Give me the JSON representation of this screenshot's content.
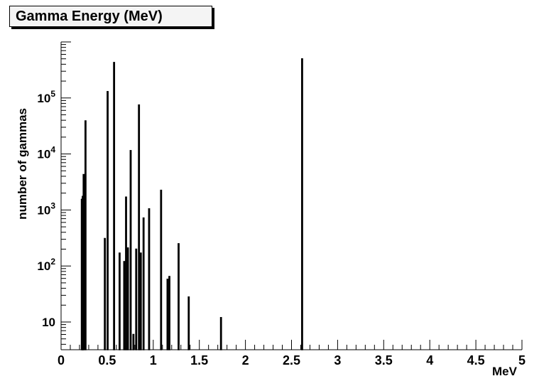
{
  "title": "Gamma Energy (MeV)",
  "colors": {
    "background": "#ffffff",
    "frame_background": "#f4f4f4",
    "bar": "#000000",
    "axis": "#000000"
  },
  "chart_data": {
    "type": "bar",
    "title": "Gamma Energy (MeV)",
    "xlabel": "MeV",
    "ylabel": "number of gammas",
    "xlim": [
      0,
      5
    ],
    "ylim": [
      3.2,
      1000000
    ],
    "yscale": "log",
    "grid": false,
    "legend": "none",
    "x_ticks": [
      "0",
      "0.5",
      "1",
      "1.5",
      "2",
      "2.5",
      "3",
      "3.5",
      "4",
      "4.5",
      "5"
    ],
    "y_ticks": [
      {
        "value": 10,
        "base": "10",
        "exp": ""
      },
      {
        "value": 100,
        "base": "10",
        "exp": "2"
      },
      {
        "value": 1000,
        "base": "10",
        "exp": "3"
      },
      {
        "value": 10000,
        "base": "10",
        "exp": "4"
      },
      {
        "value": 100000,
        "base": "10",
        "exp": "5"
      }
    ],
    "bin_width": 0.01,
    "bars": [
      {
        "x": 0.22,
        "y": 1550
      },
      {
        "x": 0.23,
        "y": 1750
      },
      {
        "x": 0.24,
        "y": 4300
      },
      {
        "x": 0.26,
        "y": 39000
      },
      {
        "x": 0.47,
        "y": 310
      },
      {
        "x": 0.5,
        "y": 130000
      },
      {
        "x": 0.57,
        "y": 430000
      },
      {
        "x": 0.63,
        "y": 170
      },
      {
        "x": 0.68,
        "y": 120
      },
      {
        "x": 0.7,
        "y": 1700
      },
      {
        "x": 0.72,
        "y": 210
      },
      {
        "x": 0.75,
        "y": 11500
      },
      {
        "x": 0.78,
        "y": 6
      },
      {
        "x": 0.81,
        "y": 200
      },
      {
        "x": 0.84,
        "y": 75000
      },
      {
        "x": 0.86,
        "y": 170
      },
      {
        "x": 0.89,
        "y": 720
      },
      {
        "x": 0.95,
        "y": 1050
      },
      {
        "x": 1.08,
        "y": 2250
      },
      {
        "x": 1.15,
        "y": 58
      },
      {
        "x": 1.17,
        "y": 65
      },
      {
        "x": 1.27,
        "y": 250
      },
      {
        "x": 1.38,
        "y": 28
      },
      {
        "x": 1.73,
        "y": 12
      },
      {
        "x": 2.61,
        "y": 500000
      }
    ]
  }
}
